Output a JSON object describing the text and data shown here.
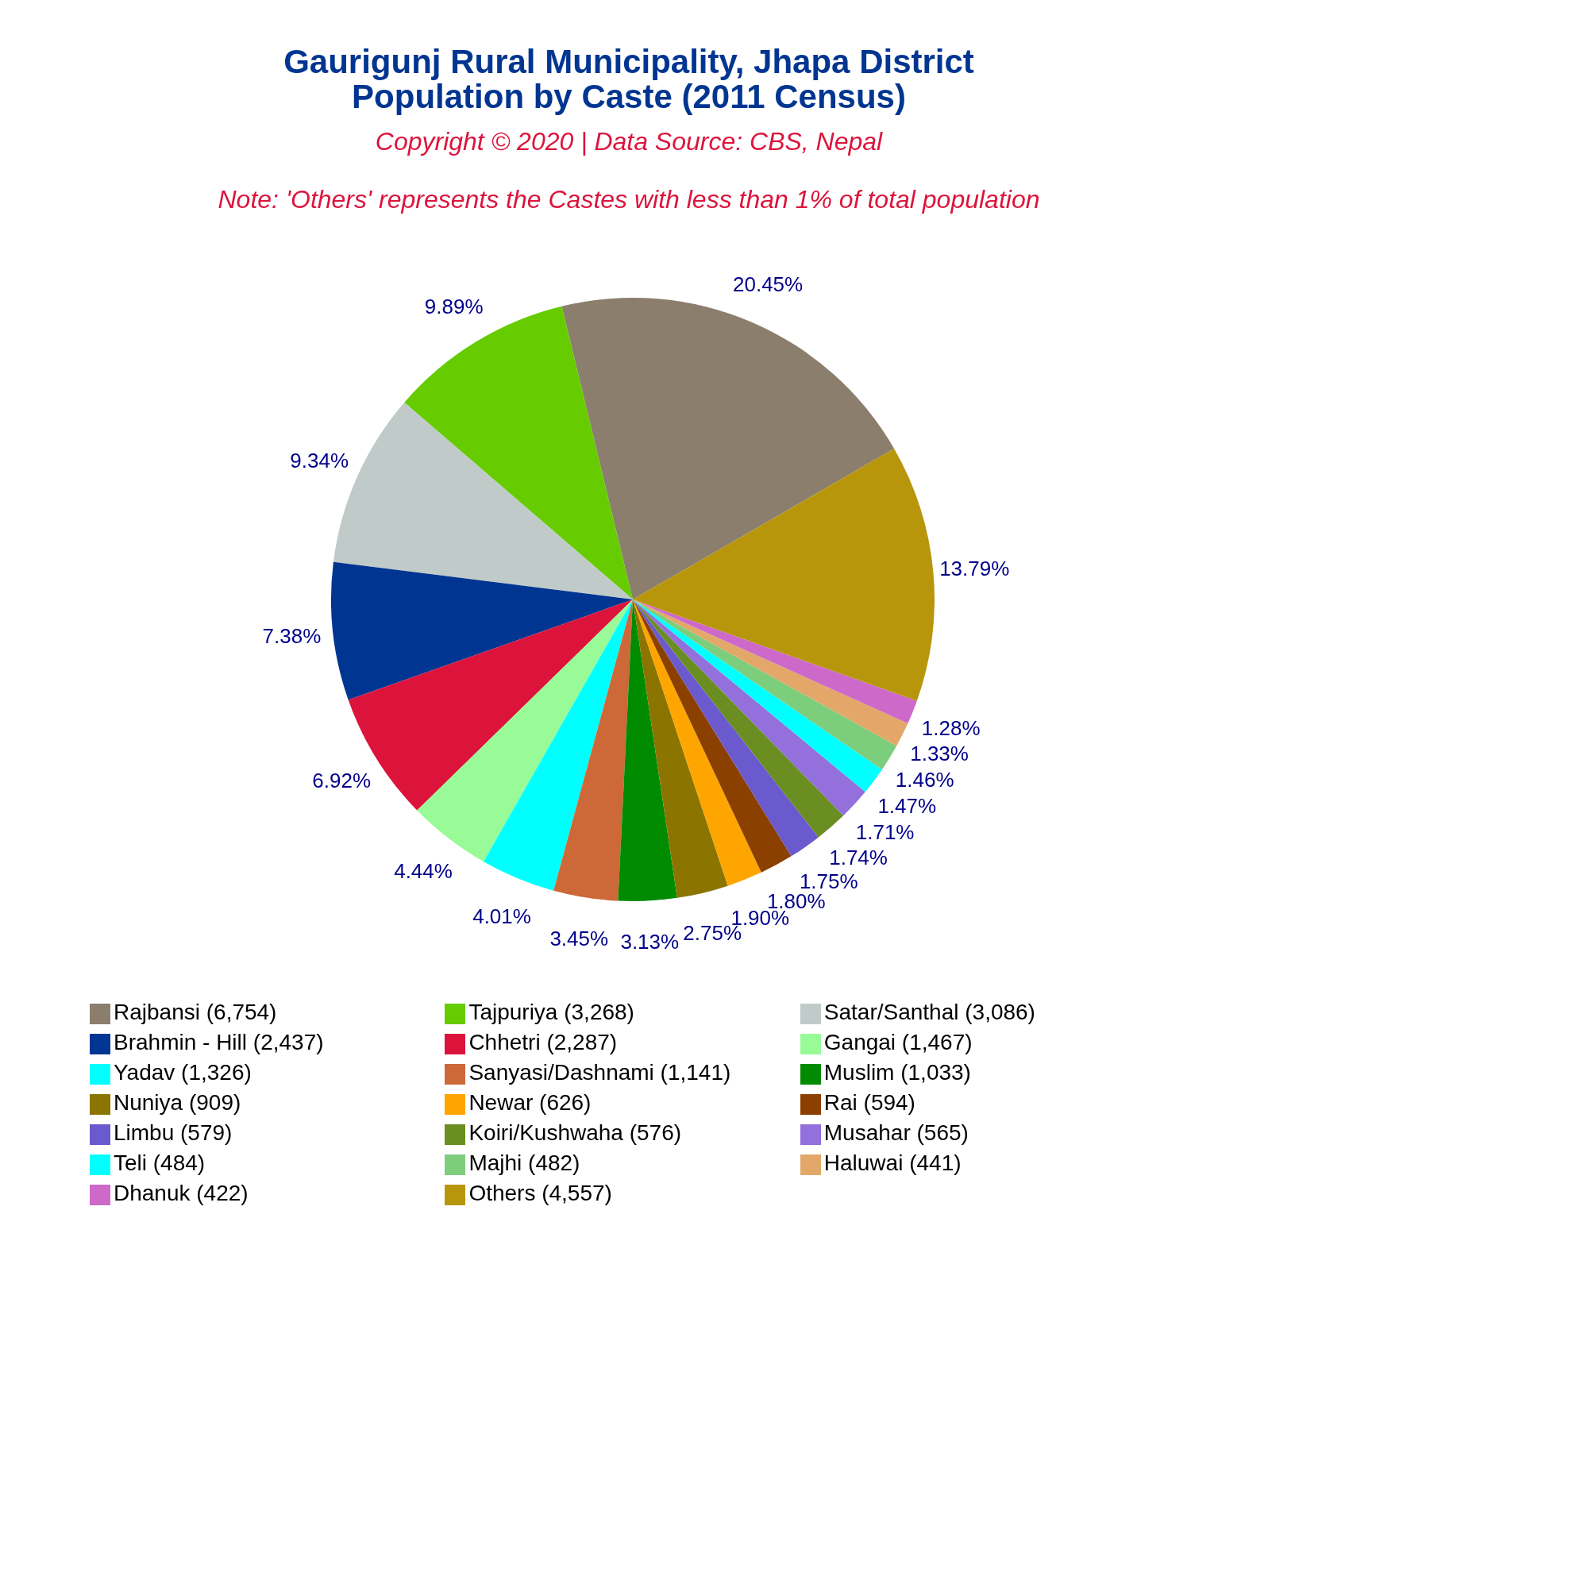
{
  "chart_data": {
    "type": "pie",
    "title": "Gaurigunj Rural Municipality, Jhapa District\nPopulation by Caste (2011 Census)",
    "subtitle": "Copyright © 2020 | Data Source: CBS, Nepal",
    "annotations": [
      "Note: 'Others' represents the Castes with less than 1% of total population"
    ],
    "categories": [
      "Rajbansi (6,754)",
      "Tajpuriya (3,268)",
      "Satar/Santhal (3,086)",
      "Brahmin - Hill (2,437)",
      "Chhetri (2,287)",
      "Gangai (1,467)",
      "Yadav (1,326)",
      "Sanyasi/Dashnami (1,141)",
      "Muslim (1,033)",
      "Nuniya (909)",
      "Newar (626)",
      "Rai (594)",
      "Limbu (579)",
      "Koiri/Kushwaha (576)",
      "Musahar (565)",
      "Teli (484)",
      "Majhi (482)",
      "Haluwai (441)",
      "Dhanuk (422)",
      "Others (4,557)"
    ],
    "values": [
      20.45,
      9.89,
      9.34,
      7.38,
      6.92,
      4.44,
      4.01,
      3.45,
      3.13,
      2.75,
      1.9,
      1.8,
      1.75,
      1.74,
      1.71,
      1.47,
      1.46,
      1.33,
      1.28,
      13.79
    ],
    "value_labels": [
      "20.45%",
      "9.89%",
      "9.34%",
      "7.38%",
      "6.92%",
      "4.44%",
      "4.01%",
      "3.45%",
      "3.13%",
      "2.75%",
      "1.90%",
      "1.80%",
      "1.75%",
      "1.74%",
      "1.71%",
      "1.47%",
      "1.46%",
      "1.33%",
      "1.28%",
      "13.79%"
    ],
    "colors": [
      "#8b7e6c",
      "#66cc00",
      "#c0cbc9",
      "#003591",
      "#dc143c",
      "#98fb98",
      "#00ffff",
      "#cd6839",
      "#008b00",
      "#8b7500",
      "#ffa500",
      "#8b4000",
      "#6a5acd",
      "#6b8e23",
      "#9370db",
      "#00ffff",
      "#7ccd7c",
      "#e3a869",
      "#cd69c9",
      "#b8960c"
    ],
    "legend": "bottom"
  }
}
